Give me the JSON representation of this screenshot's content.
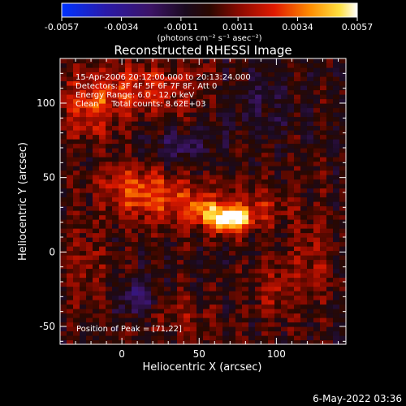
{
  "colorbar": {
    "ticks": [
      "-0.0057",
      "-0.0034",
      "-0.0011",
      "0.0011",
      "0.0034",
      "0.0057"
    ],
    "range": [
      -0.0057,
      0.0057
    ],
    "units_label": "(photons cm⁻² s⁻¹ asec⁻²)"
  },
  "chart_data": {
    "type": "heatmap",
    "title": "Reconstructed RHESSI Image",
    "xlabel": "Heliocentric X (arcsec)",
    "ylabel": "Heliocentric Y (arcsec)",
    "xlim": [
      -40,
      145
    ],
    "ylim": [
      -62,
      130
    ],
    "xticks": [
      0,
      50,
      100
    ],
    "xtick_labels": [
      "0",
      "50",
      "100"
    ],
    "yticks": [
      -50,
      0,
      50,
      100
    ],
    "ytick_labels": [
      "-50",
      "0",
      "50",
      "100"
    ],
    "peak": {
      "x": 71,
      "y": 22,
      "value": 0.0057
    },
    "sources": [
      {
        "x": 71,
        "y": 22,
        "amplitude": 1.0,
        "sx": 9,
        "sy": 6
      },
      {
        "x": 55,
        "y": 27,
        "amplitude": 0.45,
        "sx": 10,
        "sy": 6
      },
      {
        "x": 30,
        "y": 35,
        "amplitude": 0.45,
        "sx": 22,
        "sy": 12
      },
      {
        "x": 5,
        "y": 45,
        "amplitude": 0.35,
        "sx": 14,
        "sy": 10
      },
      {
        "x": 90,
        "y": 30,
        "amplitude": 0.3,
        "sx": 12,
        "sy": 10
      },
      {
        "x": 15,
        "y": 110,
        "amplitude": 0.4,
        "sx": 30,
        "sy": 12
      },
      {
        "x": -20,
        "y": 95,
        "amplitude": 0.35,
        "sx": 14,
        "sy": 15
      },
      {
        "x": 100,
        "y": -25,
        "amplitude": 0.3,
        "sx": 10,
        "sy": 14
      },
      {
        "x": 125,
        "y": 0,
        "amplitude": 0.25,
        "sx": 10,
        "sy": 20
      },
      {
        "x": -25,
        "y": -10,
        "amplitude": 0.25,
        "sx": 10,
        "sy": 18
      },
      {
        "x": 40,
        "y": -45,
        "amplitude": 0.22,
        "sx": 12,
        "sy": 10
      },
      {
        "x": 10,
        "y": -30,
        "amplitude": -0.45,
        "sx": 8,
        "sy": 8
      },
      {
        "x": 40,
        "y": 70,
        "amplitude": -0.3,
        "sx": 14,
        "sy": 8
      },
      {
        "x": 85,
        "y": 100,
        "amplitude": -0.2,
        "sx": 20,
        "sy": 15
      }
    ],
    "grid": false,
    "colormap": "blue-purple-red-yellow-white"
  },
  "info_lines": [
    "15-Apr-2006 20:12:00.000 to 20:13:24.000",
    "Detectors: 3F 4F 5F 6F 7F 8F, Att 0",
    "Energy Range: 6.0 - 12.0 keV",
    "Clean     Total counts: 8.62E+03"
  ],
  "peak_label": "Position of Peak = [71,22]",
  "timestamp": "6-May-2022 03:36"
}
